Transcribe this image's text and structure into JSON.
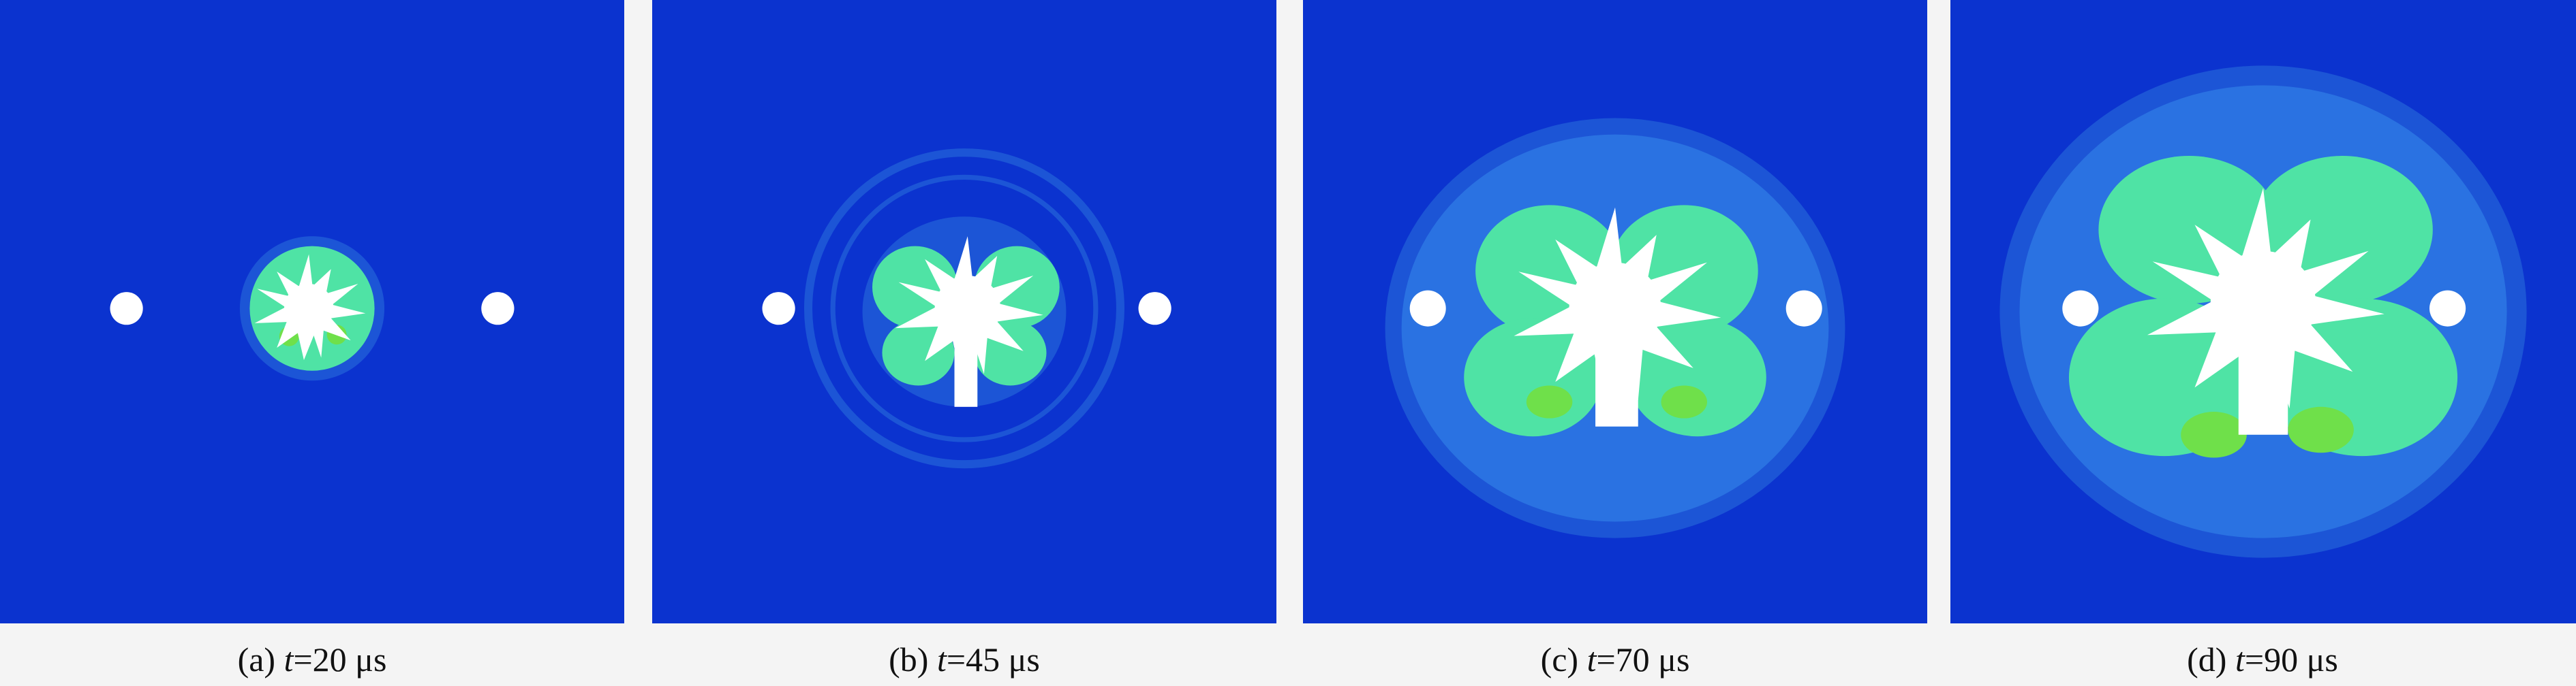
{
  "panels": [
    {
      "label": "(a) ",
      "variable": "t",
      "value": "=20 μs"
    },
    {
      "label": "(b) ",
      "variable": "t",
      "value": "=45 μs"
    },
    {
      "label": "(c) ",
      "variable": "t",
      "value": "=70 μs"
    },
    {
      "label": "(d) ",
      "variable": "t",
      "value": "=90 μs"
    }
  ]
}
